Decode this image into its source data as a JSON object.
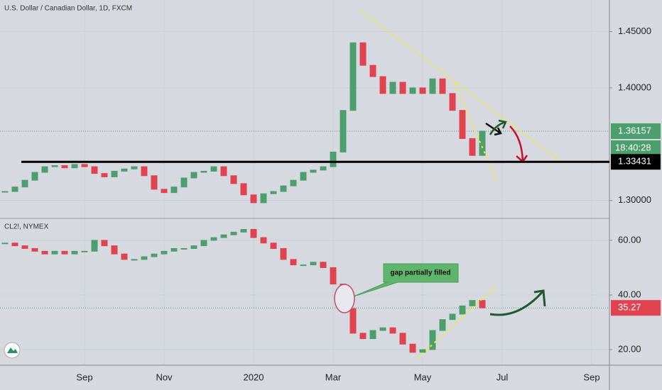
{
  "chart_data": [
    {
      "type": "candlestick",
      "title": "U.S. Dollar / Canadian Dollar, 1D, FXCM",
      "values": [
        1.308,
        1.312,
        1.318,
        1.325,
        1.33,
        1.331,
        1.329,
        1.332,
        1.33,
        1.324,
        1.321,
        1.326,
        1.328,
        1.33,
        1.322,
        1.31,
        1.307,
        1.312,
        1.32,
        1.325,
        1.326,
        1.33,
        1.322,
        1.315,
        1.305,
        1.298,
        1.306,
        1.308,
        1.313,
        1.318,
        1.325,
        1.327,
        1.33,
        1.343,
        1.38,
        1.44,
        1.42,
        1.41,
        1.395,
        1.405,
        1.395,
        1.4,
        1.395,
        1.408,
        1.395,
        1.38,
        1.355,
        1.34,
        1.36157,
        null,
        null,
        null,
        null,
        null,
        null,
        null,
        null,
        null,
        null,
        null,
        null
      ],
      "up_color": "#4c9e6c",
      "down_color": "#e0424f",
      "ylim": [
        1.286,
        1.478
      ],
      "yticks": [
        {
          "value": 1.3,
          "label": "1.30000"
        },
        {
          "value": 1.4,
          "label": "1.40000"
        },
        {
          "value": 1.45,
          "label": "1.45000"
        }
      ],
      "level": 1.33431,
      "countdown": "18:40:28",
      "grid": true
    },
    {
      "type": "candlestick",
      "title": "CL2!, NYMEX",
      "categories": [
        null,
        null,
        null,
        null,
        null,
        null,
        null,
        null,
        "Sep",
        null,
        null,
        null,
        null,
        null,
        null,
        null,
        "Nov",
        null,
        null,
        null,
        null,
        null,
        null,
        null,
        null,
        "2020",
        null,
        null,
        null,
        null,
        null,
        null,
        null,
        "Mar",
        null,
        null,
        null,
        null,
        null,
        null,
        null,
        null,
        "May",
        null,
        null,
        null,
        null,
        null,
        null,
        null,
        "Jul",
        null,
        null,
        null,
        null,
        null,
        null,
        null,
        null,
        "Sep",
        null
      ],
      "values": [
        59,
        58,
        57,
        56,
        55,
        56,
        55,
        56,
        56,
        60,
        58,
        55,
        53,
        53,
        54,
        55,
        56,
        57,
        57,
        58,
        60,
        61,
        62,
        63,
        64,
        61,
        59,
        57,
        53,
        51,
        51,
        52,
        50,
        44,
        35,
        26,
        24,
        27,
        28,
        26,
        22,
        19,
        20,
        27,
        31,
        33,
        36,
        38,
        35.27,
        null,
        null,
        null,
        null,
        null,
        null,
        null,
        null,
        null,
        null,
        null,
        null
      ],
      "up_color": "#4c9e6c",
      "down_color": "#e0424f",
      "ylim": [
        14.3,
        67.5
      ],
      "yticks": [
        {
          "value": 20,
          "label": "20.00"
        },
        {
          "value": 40,
          "label": "40.00"
        },
        {
          "value": 60,
          "label": "60.00"
        }
      ],
      "callout": "gap partially filled",
      "grid": true
    }
  ]
}
